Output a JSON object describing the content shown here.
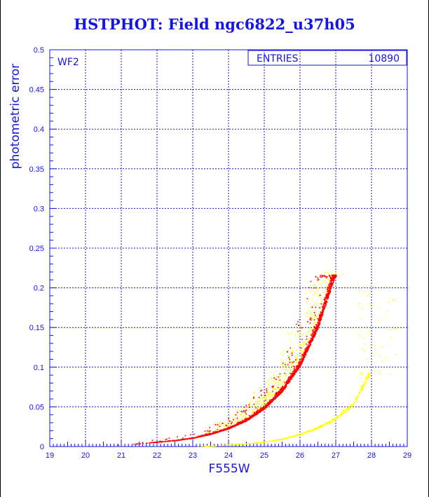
{
  "chart_data": {
    "type": "scatter",
    "title": "HSTPHOT: Field ngc6822_u37h05",
    "xlabel": "F555W",
    "ylabel": "photometric error",
    "xlim": [
      19,
      29
    ],
    "ylim": [
      0,
      0.5
    ],
    "x_ticks": [
      "19",
      "20",
      "21",
      "22",
      "23",
      "24",
      "25",
      "26",
      "27",
      "28",
      "29"
    ],
    "y_ticks": [
      "0",
      "0.05",
      "0.1",
      "0.15",
      "0.2",
      "0.25",
      "0.3",
      "0.35",
      "0.4",
      "0.45",
      "0.5"
    ],
    "grid": true,
    "panel_label": "WF2",
    "stats_box": {
      "label": "ENTRIES",
      "value": "10890"
    },
    "series": [
      {
        "color": "#ff0000",
        "description_points": [
          [
            20.8,
            0.002
          ],
          [
            21.5,
            0.004
          ],
          [
            22.0,
            0.006
          ],
          [
            22.5,
            0.008
          ],
          [
            23.0,
            0.011
          ],
          [
            23.5,
            0.016
          ],
          [
            24.0,
            0.023
          ],
          [
            24.5,
            0.033
          ],
          [
            25.0,
            0.048
          ],
          [
            25.5,
            0.07
          ],
          [
            26.0,
            0.102
          ],
          [
            26.5,
            0.15
          ],
          [
            26.9,
            0.205
          ],
          [
            27.0,
            0.217
          ]
        ],
        "x_range": [
          20.7,
          27.0
        ],
        "y_cap": 0.217
      },
      {
        "color": "#ffff00",
        "description_points": [
          [
            23.5,
            0.001
          ],
          [
            24.5,
            0.004
          ],
          [
            25.0,
            0.006
          ],
          [
            25.5,
            0.01
          ],
          [
            26.0,
            0.016
          ],
          [
            26.5,
            0.024
          ],
          [
            27.0,
            0.036
          ],
          [
            27.5,
            0.055
          ],
          [
            27.9,
            0.09
          ]
        ],
        "x_range": [
          23.0,
          28.7
        ]
      }
    ]
  }
}
